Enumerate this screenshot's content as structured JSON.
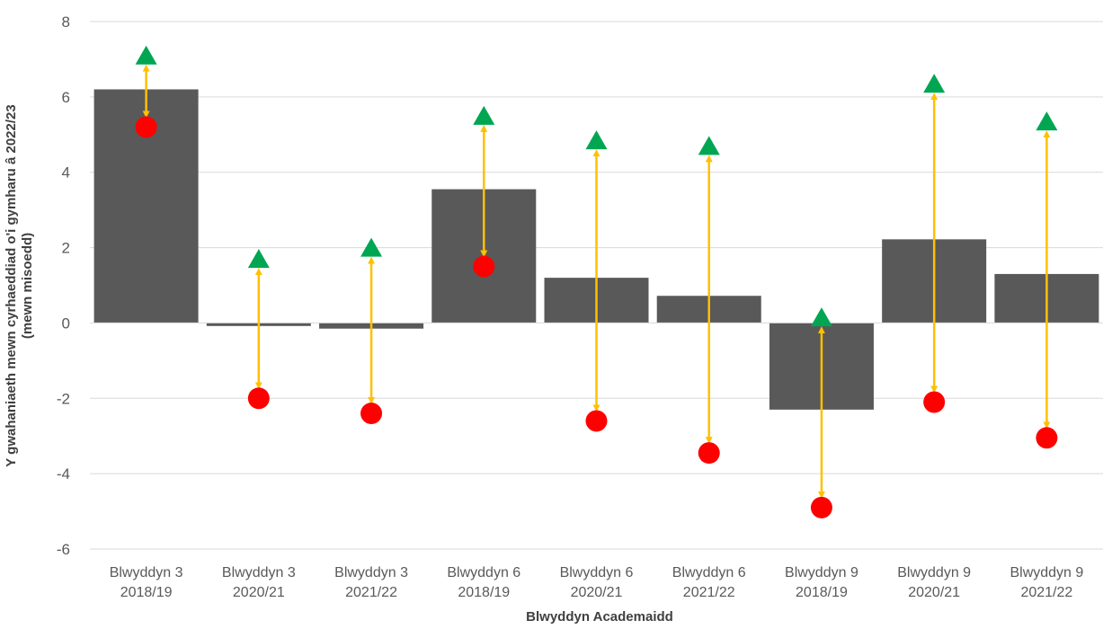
{
  "chart_data": {
    "type": "bar",
    "title": "",
    "xlabel": "Blwyddyn Academaidd",
    "ylabel_line1": "Y gwahaniaeth mewn cyrhaeddiad o'i gymharu â 2022/23",
    "ylabel_line2": "(mewn misoedd)",
    "ylim": [
      -6,
      8
    ],
    "yticks": [
      -6,
      -4,
      -2,
      0,
      2,
      4,
      6,
      8
    ],
    "ytick_labels": [
      "-6",
      "-4",
      "-2",
      "0",
      "2",
      "4",
      "6",
      "8"
    ],
    "grid": true,
    "categories": [
      [
        "Blwyddyn 3",
        "2018/19"
      ],
      [
        "Blwyddyn 3",
        "2020/21"
      ],
      [
        "Blwyddyn 3",
        "2021/22"
      ],
      [
        "Blwyddyn 6",
        "2018/19"
      ],
      [
        "Blwyddyn 6",
        "2020/21"
      ],
      [
        "Blwyddyn 6",
        "2021/22"
      ],
      [
        "Blwyddyn 9",
        "2018/19"
      ],
      [
        "Blwyddyn 9",
        "2020/21"
      ],
      [
        "Blwyddyn 9",
        "2021/22"
      ]
    ],
    "bar_values": [
      6.2,
      -0.08,
      -0.15,
      3.55,
      1.2,
      0.72,
      -2.3,
      2.22,
      1.3
    ],
    "upper_values": [
      7.1,
      1.7,
      2.0,
      5.5,
      4.85,
      4.7,
      0.15,
      6.35,
      5.35
    ],
    "lower_values": [
      5.2,
      -2.0,
      -2.4,
      1.5,
      -2.6,
      -3.45,
      -4.9,
      -2.1,
      -3.05
    ],
    "colors": {
      "bar": "#595959",
      "upper_marker": "#00A651",
      "lower_marker": "#FF0000",
      "range_arrow": "#FFC000",
      "grid": "#D9D9D9"
    }
  }
}
